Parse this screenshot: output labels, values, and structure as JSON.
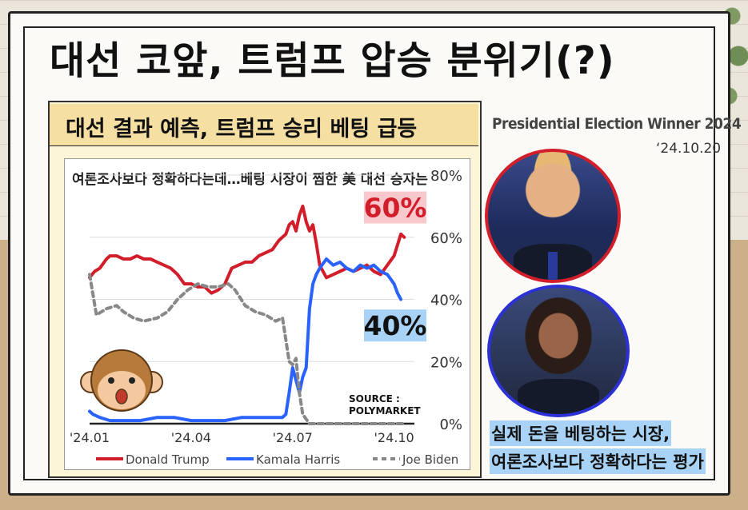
{
  "headline": "대선 코앞, 트럼프 압승 분위기(?)",
  "panel_title": "대선 결과 예측, 트럼프 승리 베팅 급등",
  "side": {
    "title": "Presidential Election Winner 2024",
    "date": "‘24.10.20",
    "caption_lines": [
      "실제 돈을 베팅하는 시장,",
      "여론조사보다 정확하다는 평가"
    ]
  },
  "colors": {
    "trump": "#d21e2a",
    "harris": "#2962ff",
    "biden": "#888888",
    "highlight_red": "#f8c8cc",
    "highlight_blue": "#a8d3f7"
  },
  "chart_data": {
    "type": "line",
    "title": "여론조사보다 정확하다는데…베팅 시장이 찜한 美 대선 승자는",
    "source": "SOURCE :\nPOLYMARKET",
    "source_lines": [
      "SOURCE :",
      "POLYMARKET"
    ],
    "ylim": [
      0,
      80
    ],
    "yticks": [
      0,
      20,
      40,
      60,
      80
    ],
    "ytick_labels": [
      "0%",
      "20%",
      "40%",
      "60%",
      "80%"
    ],
    "xlim": [
      0,
      9.6
    ],
    "xticks": [
      0,
      3,
      6,
      9
    ],
    "xtick_labels": [
      "'24.01",
      "'24.04",
      "'24.07",
      "'24.10"
    ],
    "grid": "horizontal",
    "legend_position": "bottom",
    "series": [
      {
        "name": "Donald Trump",
        "color": "#d21e2a",
        "dash": "",
        "x": [
          0,
          0.15,
          0.3,
          0.5,
          0.6,
          0.8,
          1.0,
          1.2,
          1.4,
          1.6,
          1.8,
          2.0,
          2.2,
          2.4,
          2.6,
          2.8,
          3.0,
          3.2,
          3.4,
          3.6,
          3.8,
          4.0,
          4.2,
          4.4,
          4.6,
          4.8,
          5.0,
          5.2,
          5.4,
          5.6,
          5.8,
          5.9,
          6.0,
          6.1,
          6.2,
          6.3,
          6.4,
          6.5,
          6.6,
          6.7,
          6.8,
          7.0,
          7.2,
          7.4,
          7.6,
          7.8,
          8.0,
          8.2,
          8.4,
          8.6,
          8.8,
          9.0,
          9.2,
          9.3
        ],
        "y": [
          47,
          49,
          50,
          53,
          54,
          54,
          53,
          53,
          54,
          53,
          53,
          52,
          51,
          50,
          48,
          45,
          45,
          44,
          44,
          42,
          43,
          45,
          50,
          51,
          52,
          52,
          54,
          55,
          56,
          59,
          61,
          64,
          65,
          62,
          67,
          70,
          65,
          62,
          64,
          58,
          51,
          47,
          48,
          49,
          50,
          49,
          50,
          51,
          49,
          48,
          51,
          54,
          61,
          60
        ]
      },
      {
        "name": "Kamala Harris",
        "color": "#2962ff",
        "dash": "",
        "x": [
          0,
          0.1,
          0.3,
          0.6,
          1.0,
          1.5,
          2.0,
          2.5,
          3.0,
          3.5,
          4.0,
          4.5,
          5.0,
          5.4,
          5.7,
          5.8,
          5.9,
          6.0,
          6.1,
          6.2,
          6.3,
          6.4,
          6.5,
          6.6,
          6.7,
          6.8,
          7.0,
          7.2,
          7.4,
          7.6,
          7.8,
          8.0,
          8.2,
          8.4,
          8.6,
          8.8,
          9.0,
          9.1,
          9.2
        ],
        "y": [
          4,
          3,
          2,
          1,
          1,
          1,
          2,
          2,
          1,
          1,
          1,
          2,
          2,
          2,
          2,
          3,
          10,
          18,
          14,
          10,
          15,
          18,
          37,
          45,
          48,
          50,
          53,
          51,
          52,
          50,
          49,
          51,
          50,
          51,
          49,
          48,
          45,
          42,
          40
        ]
      },
      {
        "name": "Joe Biden",
        "color": "#888888",
        "dash": "6,5",
        "x": [
          0,
          0.2,
          0.5,
          0.8,
          1.0,
          1.3,
          1.6,
          2.0,
          2.3,
          2.6,
          2.9,
          3.2,
          3.5,
          3.8,
          4.1,
          4.3,
          4.6,
          4.9,
          5.2,
          5.5,
          5.7,
          5.8,
          5.9,
          6.0,
          6.1,
          6.2,
          6.3,
          6.5,
          6.8,
          7.0,
          8.0,
          9.0,
          9.3
        ],
        "y": [
          48,
          35,
          37,
          38,
          36,
          34,
          33,
          34,
          36,
          40,
          43,
          45,
          44,
          44,
          45,
          43,
          38,
          36,
          35,
          33,
          34,
          27,
          20,
          19,
          21,
          10,
          3,
          0,
          0,
          0,
          0,
          0,
          0
        ]
      }
    ],
    "annotations": [
      {
        "text": "60%",
        "series": "Donald Trump",
        "value": 60
      },
      {
        "text": "40%",
        "series": "Kamala Harris",
        "value": 40
      }
    ]
  }
}
